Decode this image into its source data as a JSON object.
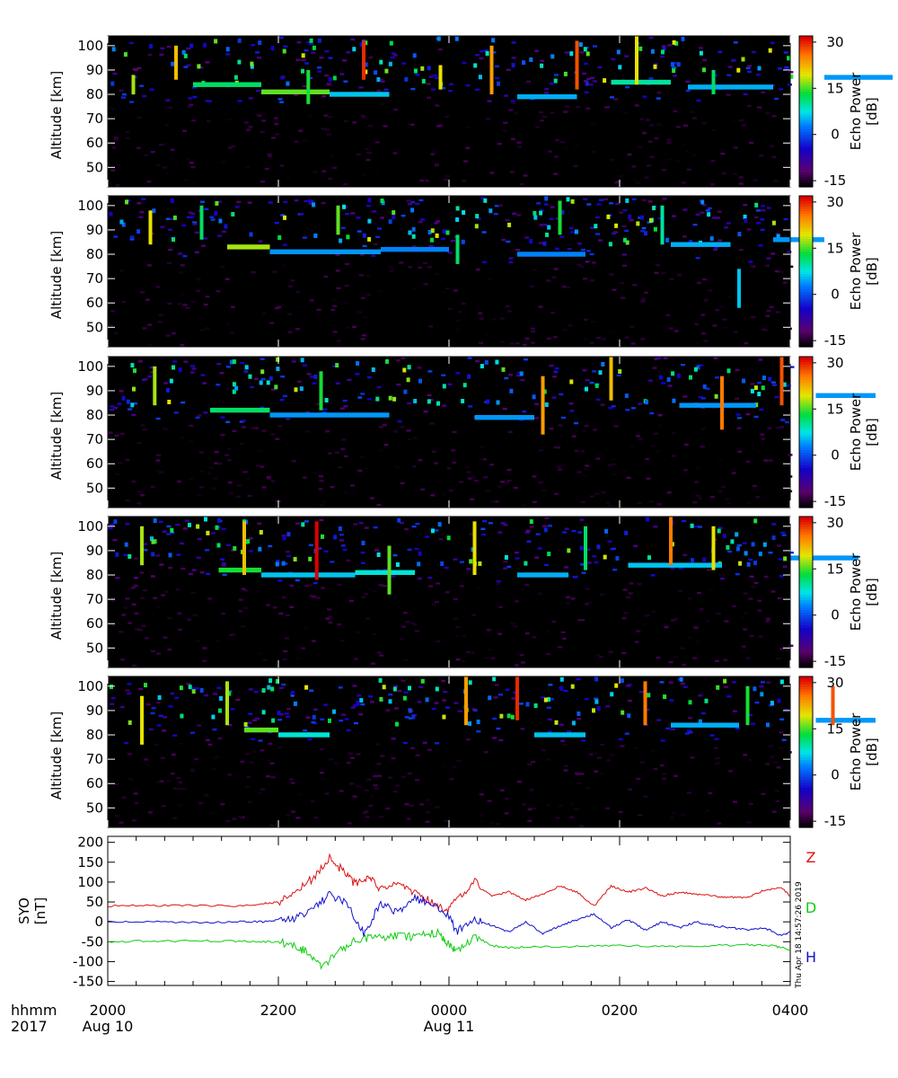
{
  "chart_data": [
    {
      "type": "heatmap",
      "panel": 1,
      "ylabel": "Altitude [km]",
      "ylim": [
        42,
        104
      ],
      "yticks": [
        50,
        60,
        70,
        80,
        90,
        100
      ],
      "colorbar": {
        "label": "Echo Power [dB]",
        "range": [
          -17,
          32
        ],
        "ticks": [
          -15,
          0,
          15,
          30
        ]
      },
      "echo_layers": [
        {
          "start_hour": 21.0,
          "end_hour": 21.8,
          "altitude": 84,
          "power": 12
        },
        {
          "start_hour": 21.8,
          "end_hour": 22.6,
          "altitude": 81,
          "power": 16
        },
        {
          "start_hour": 22.6,
          "end_hour": 23.3,
          "altitude": 80,
          "power": 6
        },
        {
          "start_hour": 24.8,
          "end_hour": 25.5,
          "altitude": 79,
          "power": 5
        },
        {
          "start_hour": 25.9,
          "end_hour": 26.6,
          "altitude": 85,
          "power": 10
        },
        {
          "start_hour": 26.8,
          "end_hour": 27.8,
          "altitude": 83,
          "power": 5
        },
        {
          "start_hour": 28.4,
          "end_hour": 29.2,
          "altitude": 87,
          "power": 4
        }
      ],
      "bursts": [
        {
          "hour": 20.3,
          "low": 80,
          "high": 88,
          "power": 18
        },
        {
          "hour": 20.8,
          "low": 86,
          "high": 100,
          "power": 22
        },
        {
          "hour": 22.35,
          "low": 76,
          "high": 90,
          "power": 14
        },
        {
          "hour": 23.0,
          "low": 86,
          "high": 102,
          "power": 30
        },
        {
          "hour": 23.9,
          "low": 82,
          "high": 92,
          "power": 20
        },
        {
          "hour": 24.5,
          "low": 80,
          "high": 100,
          "power": 24
        },
        {
          "hour": 25.5,
          "low": 82,
          "high": 102,
          "power": 28
        },
        {
          "hour": 26.2,
          "low": 84,
          "high": 104,
          "power": 20
        },
        {
          "hour": 27.1,
          "low": 80,
          "high": 90,
          "power": 12
        }
      ]
    },
    {
      "type": "heatmap",
      "panel": 2,
      "ylabel": "Altitude [km]",
      "ylim": [
        42,
        104
      ],
      "yticks": [
        50,
        60,
        70,
        80,
        90,
        100
      ],
      "colorbar": {
        "label": "Echo Power [dB]",
        "range": [
          -17,
          32
        ],
        "ticks": [
          -15,
          0,
          15,
          30
        ]
      },
      "echo_layers": [
        {
          "start_hour": 21.4,
          "end_hour": 21.9,
          "altitude": 83,
          "power": 18
        },
        {
          "start_hour": 21.9,
          "end_hour": 23.2,
          "altitude": 81,
          "power": 4
        },
        {
          "start_hour": 23.2,
          "end_hour": 24.0,
          "altitude": 82,
          "power": 3
        },
        {
          "start_hour": 24.8,
          "end_hour": 25.6,
          "altitude": 80,
          "power": 3
        },
        {
          "start_hour": 26.6,
          "end_hour": 27.3,
          "altitude": 84,
          "power": 5
        },
        {
          "start_hour": 27.8,
          "end_hour": 28.4,
          "altitude": 86,
          "power": 4
        }
      ],
      "bursts": [
        {
          "hour": 20.5,
          "low": 84,
          "high": 98,
          "power": 20
        },
        {
          "hour": 21.1,
          "low": 86,
          "high": 100,
          "power": 12
        },
        {
          "hour": 22.7,
          "low": 88,
          "high": 100,
          "power": 16
        },
        {
          "hour": 24.1,
          "low": 76,
          "high": 88,
          "power": 12
        },
        {
          "hour": 25.3,
          "low": 88,
          "high": 102,
          "power": 14
        },
        {
          "hour": 26.5,
          "low": 84,
          "high": 100,
          "power": 10
        },
        {
          "hour": 27.4,
          "low": 58,
          "high": 74,
          "power": 6
        }
      ]
    },
    {
      "type": "heatmap",
      "panel": 3,
      "ylabel": "Altitude [km]",
      "ylim": [
        42,
        104
      ],
      "yticks": [
        50,
        60,
        70,
        80,
        90,
        100
      ],
      "colorbar": {
        "label": "Echo Power [dB]",
        "range": [
          -17,
          32
        ],
        "ticks": [
          -15,
          0,
          15,
          30
        ]
      },
      "echo_layers": [
        {
          "start_hour": 21.2,
          "end_hour": 21.9,
          "altitude": 82,
          "power": 12
        },
        {
          "start_hour": 21.9,
          "end_hour": 23.3,
          "altitude": 80,
          "power": 4
        },
        {
          "start_hour": 24.3,
          "end_hour": 25.0,
          "altitude": 79,
          "power": 4
        },
        {
          "start_hour": 26.7,
          "end_hour": 27.6,
          "altitude": 84,
          "power": 4
        },
        {
          "start_hour": 28.3,
          "end_hour": 29.0,
          "altitude": 88,
          "power": 4
        }
      ],
      "bursts": [
        {
          "hour": 20.55,
          "low": 84,
          "high": 100,
          "power": 18
        },
        {
          "hour": 22.5,
          "low": 82,
          "high": 98,
          "power": 14
        },
        {
          "hour": 25.1,
          "low": 72,
          "high": 96,
          "power": 24
        },
        {
          "hour": 25.9,
          "low": 86,
          "high": 104,
          "power": 22
        },
        {
          "hour": 27.2,
          "low": 74,
          "high": 96,
          "power": 26
        },
        {
          "hour": 27.9,
          "low": 84,
          "high": 104,
          "power": 28
        }
      ]
    },
    {
      "type": "heatmap",
      "panel": 4,
      "ylabel": "Altitude [km]",
      "ylim": [
        42,
        104
      ],
      "yticks": [
        50,
        60,
        70,
        80,
        90,
        100
      ],
      "colorbar": {
        "label": "Echo Power [dB]",
        "range": [
          -17,
          32
        ],
        "ticks": [
          -15,
          0,
          15,
          30
        ]
      },
      "echo_layers": [
        {
          "start_hour": 21.3,
          "end_hour": 21.8,
          "altitude": 82,
          "power": 14
        },
        {
          "start_hour": 21.8,
          "end_hour": 22.9,
          "altitude": 80,
          "power": 6
        },
        {
          "start_hour": 22.9,
          "end_hour": 23.6,
          "altitude": 81,
          "power": 8
        },
        {
          "start_hour": 24.8,
          "end_hour": 25.4,
          "altitude": 80,
          "power": 5
        },
        {
          "start_hour": 26.1,
          "end_hour": 27.2,
          "altitude": 84,
          "power": 6
        },
        {
          "start_hour": 28.0,
          "end_hour": 28.8,
          "altitude": 87,
          "power": 4
        }
      ],
      "bursts": [
        {
          "hour": 20.4,
          "low": 84,
          "high": 100,
          "power": 18
        },
        {
          "hour": 21.6,
          "low": 80,
          "high": 102,
          "power": 22
        },
        {
          "hour": 22.45,
          "low": 78,
          "high": 102,
          "power": 32
        },
        {
          "hour": 23.3,
          "low": 72,
          "high": 92,
          "power": 16
        },
        {
          "hour": 24.3,
          "low": 80,
          "high": 102,
          "power": 20
        },
        {
          "hour": 25.6,
          "low": 82,
          "high": 100,
          "power": 12
        },
        {
          "hour": 26.6,
          "low": 84,
          "high": 104,
          "power": 26
        },
        {
          "hour": 27.1,
          "low": 82,
          "high": 100,
          "power": 20
        }
      ]
    },
    {
      "type": "heatmap",
      "panel": 5,
      "ylabel": "Altitude [km]",
      "ylim": [
        42,
        104
      ],
      "yticks": [
        50,
        60,
        70,
        80,
        90,
        100
      ],
      "colorbar": {
        "label": "Echo Power [dB]",
        "range": [
          -17,
          32
        ],
        "ticks": [
          -15,
          0,
          15,
          30
        ]
      },
      "echo_layers": [
        {
          "start_hour": 21.6,
          "end_hour": 22.0,
          "altitude": 82,
          "power": 16
        },
        {
          "start_hour": 22.0,
          "end_hour": 22.6,
          "altitude": 80,
          "power": 8
        },
        {
          "start_hour": 25.0,
          "end_hour": 25.6,
          "altitude": 80,
          "power": 6
        },
        {
          "start_hour": 26.6,
          "end_hour": 27.4,
          "altitude": 84,
          "power": 5
        },
        {
          "start_hour": 28.3,
          "end_hour": 29.0,
          "altitude": 86,
          "power": 4
        }
      ],
      "bursts": [
        {
          "hour": 20.4,
          "low": 76,
          "high": 96,
          "power": 20
        },
        {
          "hour": 21.4,
          "low": 84,
          "high": 102,
          "power": 18
        },
        {
          "hour": 24.2,
          "low": 84,
          "high": 104,
          "power": 24
        },
        {
          "hour": 24.8,
          "low": 86,
          "high": 104,
          "power": 30
        },
        {
          "hour": 26.3,
          "low": 84,
          "high": 102,
          "power": 26
        },
        {
          "hour": 27.5,
          "low": 84,
          "high": 100,
          "power": 14
        },
        {
          "hour": 28.5,
          "low": 84,
          "high": 100,
          "power": 28
        }
      ]
    },
    {
      "type": "line",
      "panel": 6,
      "ylabel": "SYO [nT]",
      "ylim": [
        -160,
        215
      ],
      "yticks": [
        -150,
        -100,
        -50,
        0,
        50,
        100,
        150,
        200
      ],
      "x_unit": "hours from 2000 UT Aug 10",
      "series": [
        {
          "name": "Z",
          "color": "#dd1111",
          "x": [
            0,
            0.5,
            1.0,
            1.5,
            1.8,
            2.0,
            2.2,
            2.4,
            2.6,
            2.75,
            2.9,
            3.05,
            3.2,
            3.4,
            3.6,
            3.8,
            3.95,
            4.1,
            4.3,
            4.5,
            4.7,
            4.9,
            5.1,
            5.3,
            5.5,
            5.7,
            5.9,
            6.1,
            6.3,
            6.5,
            6.7,
            6.9,
            7.1,
            7.3,
            7.5,
            7.7,
            7.9,
            8.0
          ],
          "y": [
            40,
            41,
            41,
            40,
            45,
            50,
            70,
            110,
            160,
            130,
            95,
            115,
            80,
            100,
            75,
            50,
            25,
            60,
            100,
            65,
            75,
            55,
            70,
            90,
            75,
            40,
            90,
            75,
            85,
            65,
            75,
            70,
            65,
            62,
            62,
            80,
            85,
            65
          ]
        },
        {
          "name": "D",
          "color": "#11cc11",
          "x": [
            0,
            0.5,
            1.0,
            1.5,
            1.8,
            2.0,
            2.2,
            2.35,
            2.5,
            2.7,
            2.9,
            3.1,
            3.3,
            3.5,
            3.7,
            3.9,
            4.0,
            4.1,
            4.3,
            4.5,
            4.7,
            5.0,
            5.5,
            6.0,
            6.5,
            7.0,
            7.5,
            7.8,
            8.0
          ],
          "y": [
            -50,
            -48,
            -48,
            -48,
            -50,
            -50,
            -60,
            -80,
            -115,
            -75,
            -45,
            -40,
            -35,
            -40,
            -25,
            -30,
            -60,
            -75,
            -35,
            -60,
            -65,
            -62,
            -62,
            -60,
            -62,
            -60,
            -58,
            -60,
            -70
          ]
        },
        {
          "name": "H",
          "color": "#1111cc",
          "x": [
            0,
            0.5,
            1.0,
            1.5,
            1.8,
            2.0,
            2.2,
            2.4,
            2.6,
            2.8,
            3.0,
            3.2,
            3.4,
            3.6,
            3.8,
            4.0,
            4.1,
            4.3,
            4.5,
            4.7,
            4.9,
            5.1,
            5.3,
            5.5,
            5.7,
            5.9,
            6.1,
            6.3,
            6.5,
            6.7,
            6.9,
            7.1,
            7.3,
            7.5,
            7.7,
            7.9,
            8.0
          ],
          "y": [
            0,
            0,
            -2,
            0,
            0,
            5,
            10,
            30,
            70,
            45,
            -30,
            50,
            20,
            60,
            45,
            10,
            -25,
            10,
            -10,
            -25,
            0,
            -30,
            -10,
            5,
            20,
            -15,
            5,
            -20,
            0,
            -15,
            0,
            -10,
            -15,
            -20,
            -15,
            -35,
            -25
          ]
        }
      ]
    }
  ],
  "xaxis": {
    "row_labels": [
      "hhmm",
      "2017"
    ],
    "ticks": [
      {
        "hour": 0,
        "label": "2000",
        "date": "Aug 10"
      },
      {
        "hour": 2,
        "label": "2200",
        "date": ""
      },
      {
        "hour": 4,
        "label": "0000",
        "date": "Aug 11"
      },
      {
        "hour": 6,
        "label": "0200",
        "date": ""
      },
      {
        "hour": 8,
        "label": "0400",
        "date": ""
      }
    ]
  },
  "timestamp": "Thu Apr 18 14:57:26 2019",
  "colors": {
    "background": "#000000",
    "frame": "#000000"
  }
}
